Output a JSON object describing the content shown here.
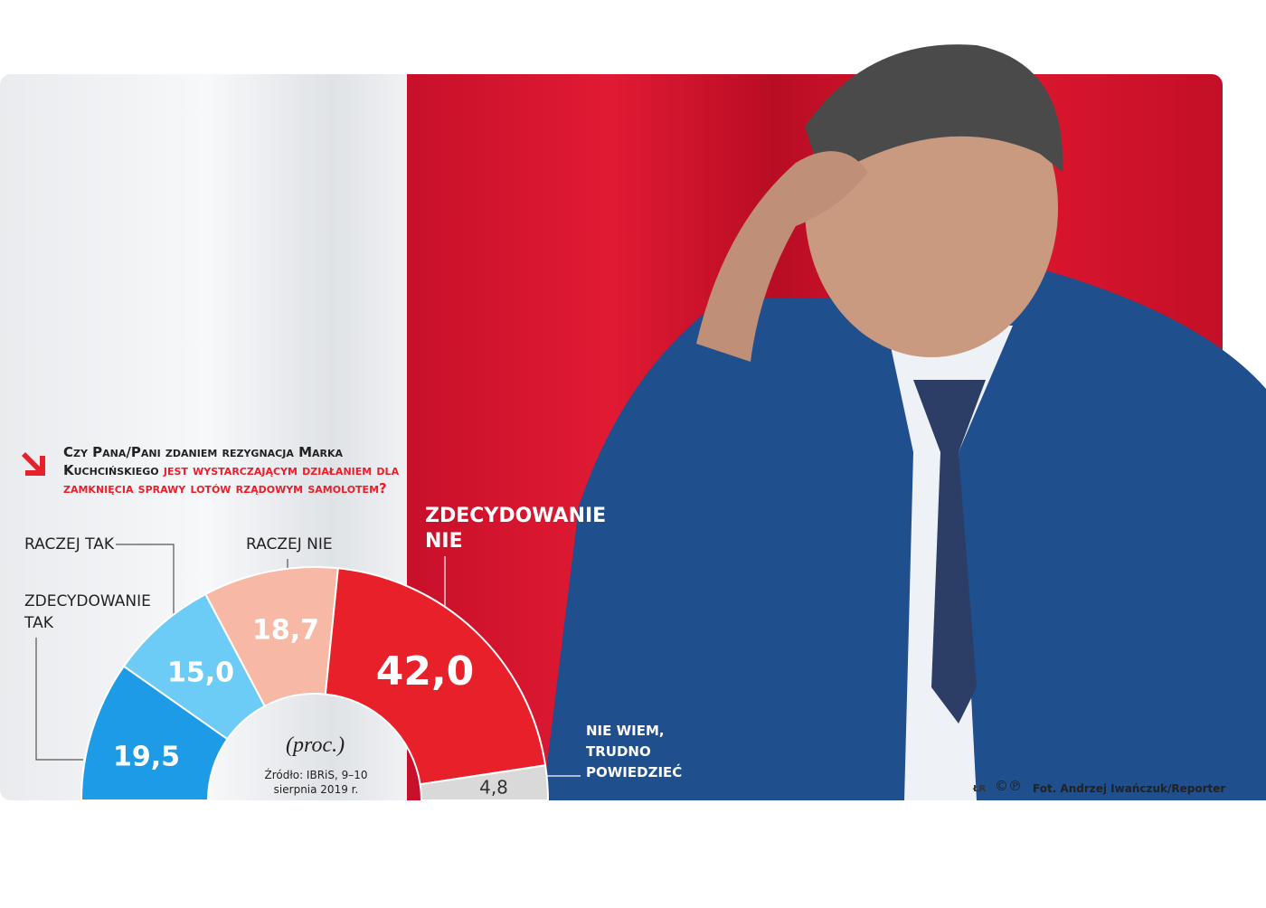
{
  "chart_data": {
    "type": "semi-donut",
    "question": [
      "Czy Pana/Pani zdaniem rezygnacja Marka Kuchcińskiego",
      "jest wystarczającym działaniem dla zamknięcia sprawy lotów rządowym samolotem?"
    ],
    "categories": [
      "ZDECYDOWANIE TAK",
      "RACZEJ TAK",
      "RACZEJ NIE",
      "ZDECYDOWANIE NIE",
      "NIE WIEM, TRUDNO POWIEDZIEĆ"
    ],
    "values": [
      19.5,
      15.0,
      18.7,
      42.0,
      4.8
    ],
    "value_labels": [
      "19,5",
      "15,0",
      "18,7",
      "42,0",
      "4,8"
    ],
    "colors": [
      "#1e9be6",
      "#6dccf5",
      "#f7b8a6",
      "#e8202a",
      "#d9d9d9"
    ],
    "unit": "(proc.)",
    "source": "Źródło: IBRiS, 9–10 sierpnia 2019 r.",
    "logo": "ŁR",
    "rights": "©℗",
    "credit": "Fot. Andrzej Iwańczuk/Reporter"
  }
}
